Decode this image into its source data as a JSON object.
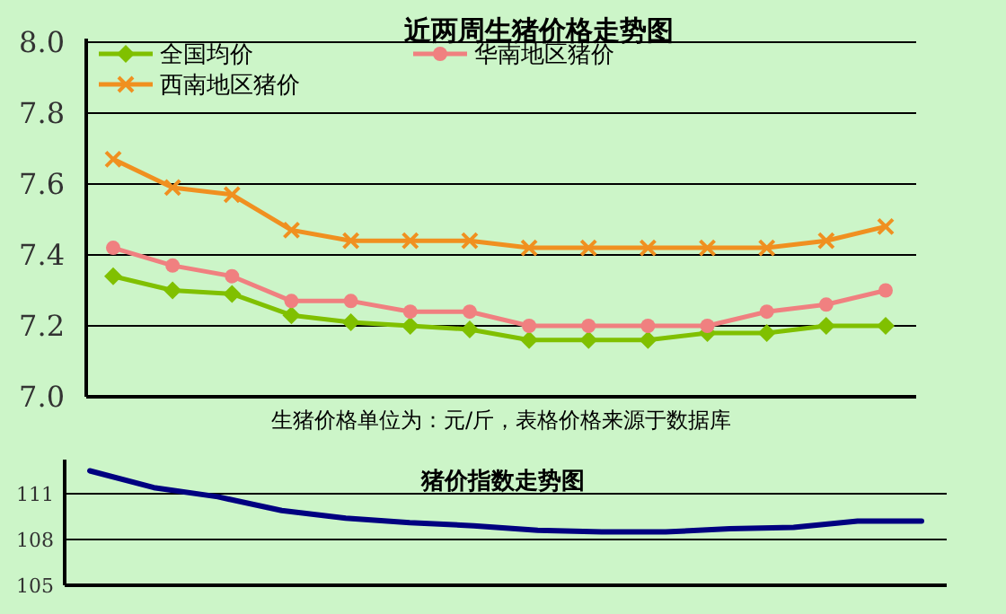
{
  "chart_data": [
    {
      "type": "line",
      "title": "近两周生猪价格走势图",
      "annotations": [
        "生猪价格单位为：元/斤，表格价格来源于数据库"
      ],
      "categories": [
        null,
        null,
        null,
        null,
        null,
        null,
        null,
        null,
        null,
        null,
        null,
        null,
        null,
        null
      ],
      "ylim": [
        7.0,
        8.0
      ],
      "yticks": [
        {
          "value": 7.0,
          "label": "7.0"
        },
        {
          "value": 7.2,
          "label": "7.2"
        },
        {
          "value": 7.4,
          "label": "7.4"
        },
        {
          "value": 7.6,
          "label": "7.6"
        },
        {
          "value": 7.8,
          "label": "7.8"
        },
        {
          "value": 8.0,
          "label": "8.0"
        }
      ],
      "grid": "y",
      "legend": "top left",
      "series": [
        {
          "name": "全国均价",
          "color": "#80c000",
          "marker": "diamond",
          "values": [
            7.34,
            7.3,
            7.29,
            7.23,
            7.21,
            7.2,
            7.19,
            7.16,
            7.16,
            7.16,
            7.18,
            7.18,
            7.2,
            7.2
          ]
        },
        {
          "name": "华南地区猪价",
          "color": "#f08080",
          "marker": "circle",
          "values": [
            7.42,
            7.37,
            7.34,
            7.27,
            7.27,
            7.24,
            7.24,
            7.2,
            7.2,
            7.2,
            7.2,
            7.24,
            7.26,
            7.3
          ]
        },
        {
          "name": "西南地区猪价",
          "color": "#f09020",
          "marker": "cross",
          "values": [
            7.67,
            7.59,
            7.57,
            7.47,
            7.44,
            7.44,
            7.44,
            7.42,
            7.42,
            7.42,
            7.42,
            7.42,
            7.44,
            7.48
          ]
        }
      ]
    },
    {
      "type": "line",
      "title": "猪价指数走势图",
      "categories": [
        null,
        null,
        null,
        null,
        null,
        null,
        null,
        null,
        null,
        null,
        null,
        null,
        null,
        null
      ],
      "ylim": [
        105,
        113
      ],
      "yticks": [
        105,
        108,
        111
      ],
      "grid": "y",
      "series": [
        {
          "color": "#000080",
          "values": [
            112.5,
            111.4,
            110.8,
            109.9,
            109.4,
            109.1,
            108.9,
            108.6,
            108.5,
            108.5,
            108.7,
            108.8,
            109.2,
            109.2
          ]
        }
      ]
    }
  ]
}
